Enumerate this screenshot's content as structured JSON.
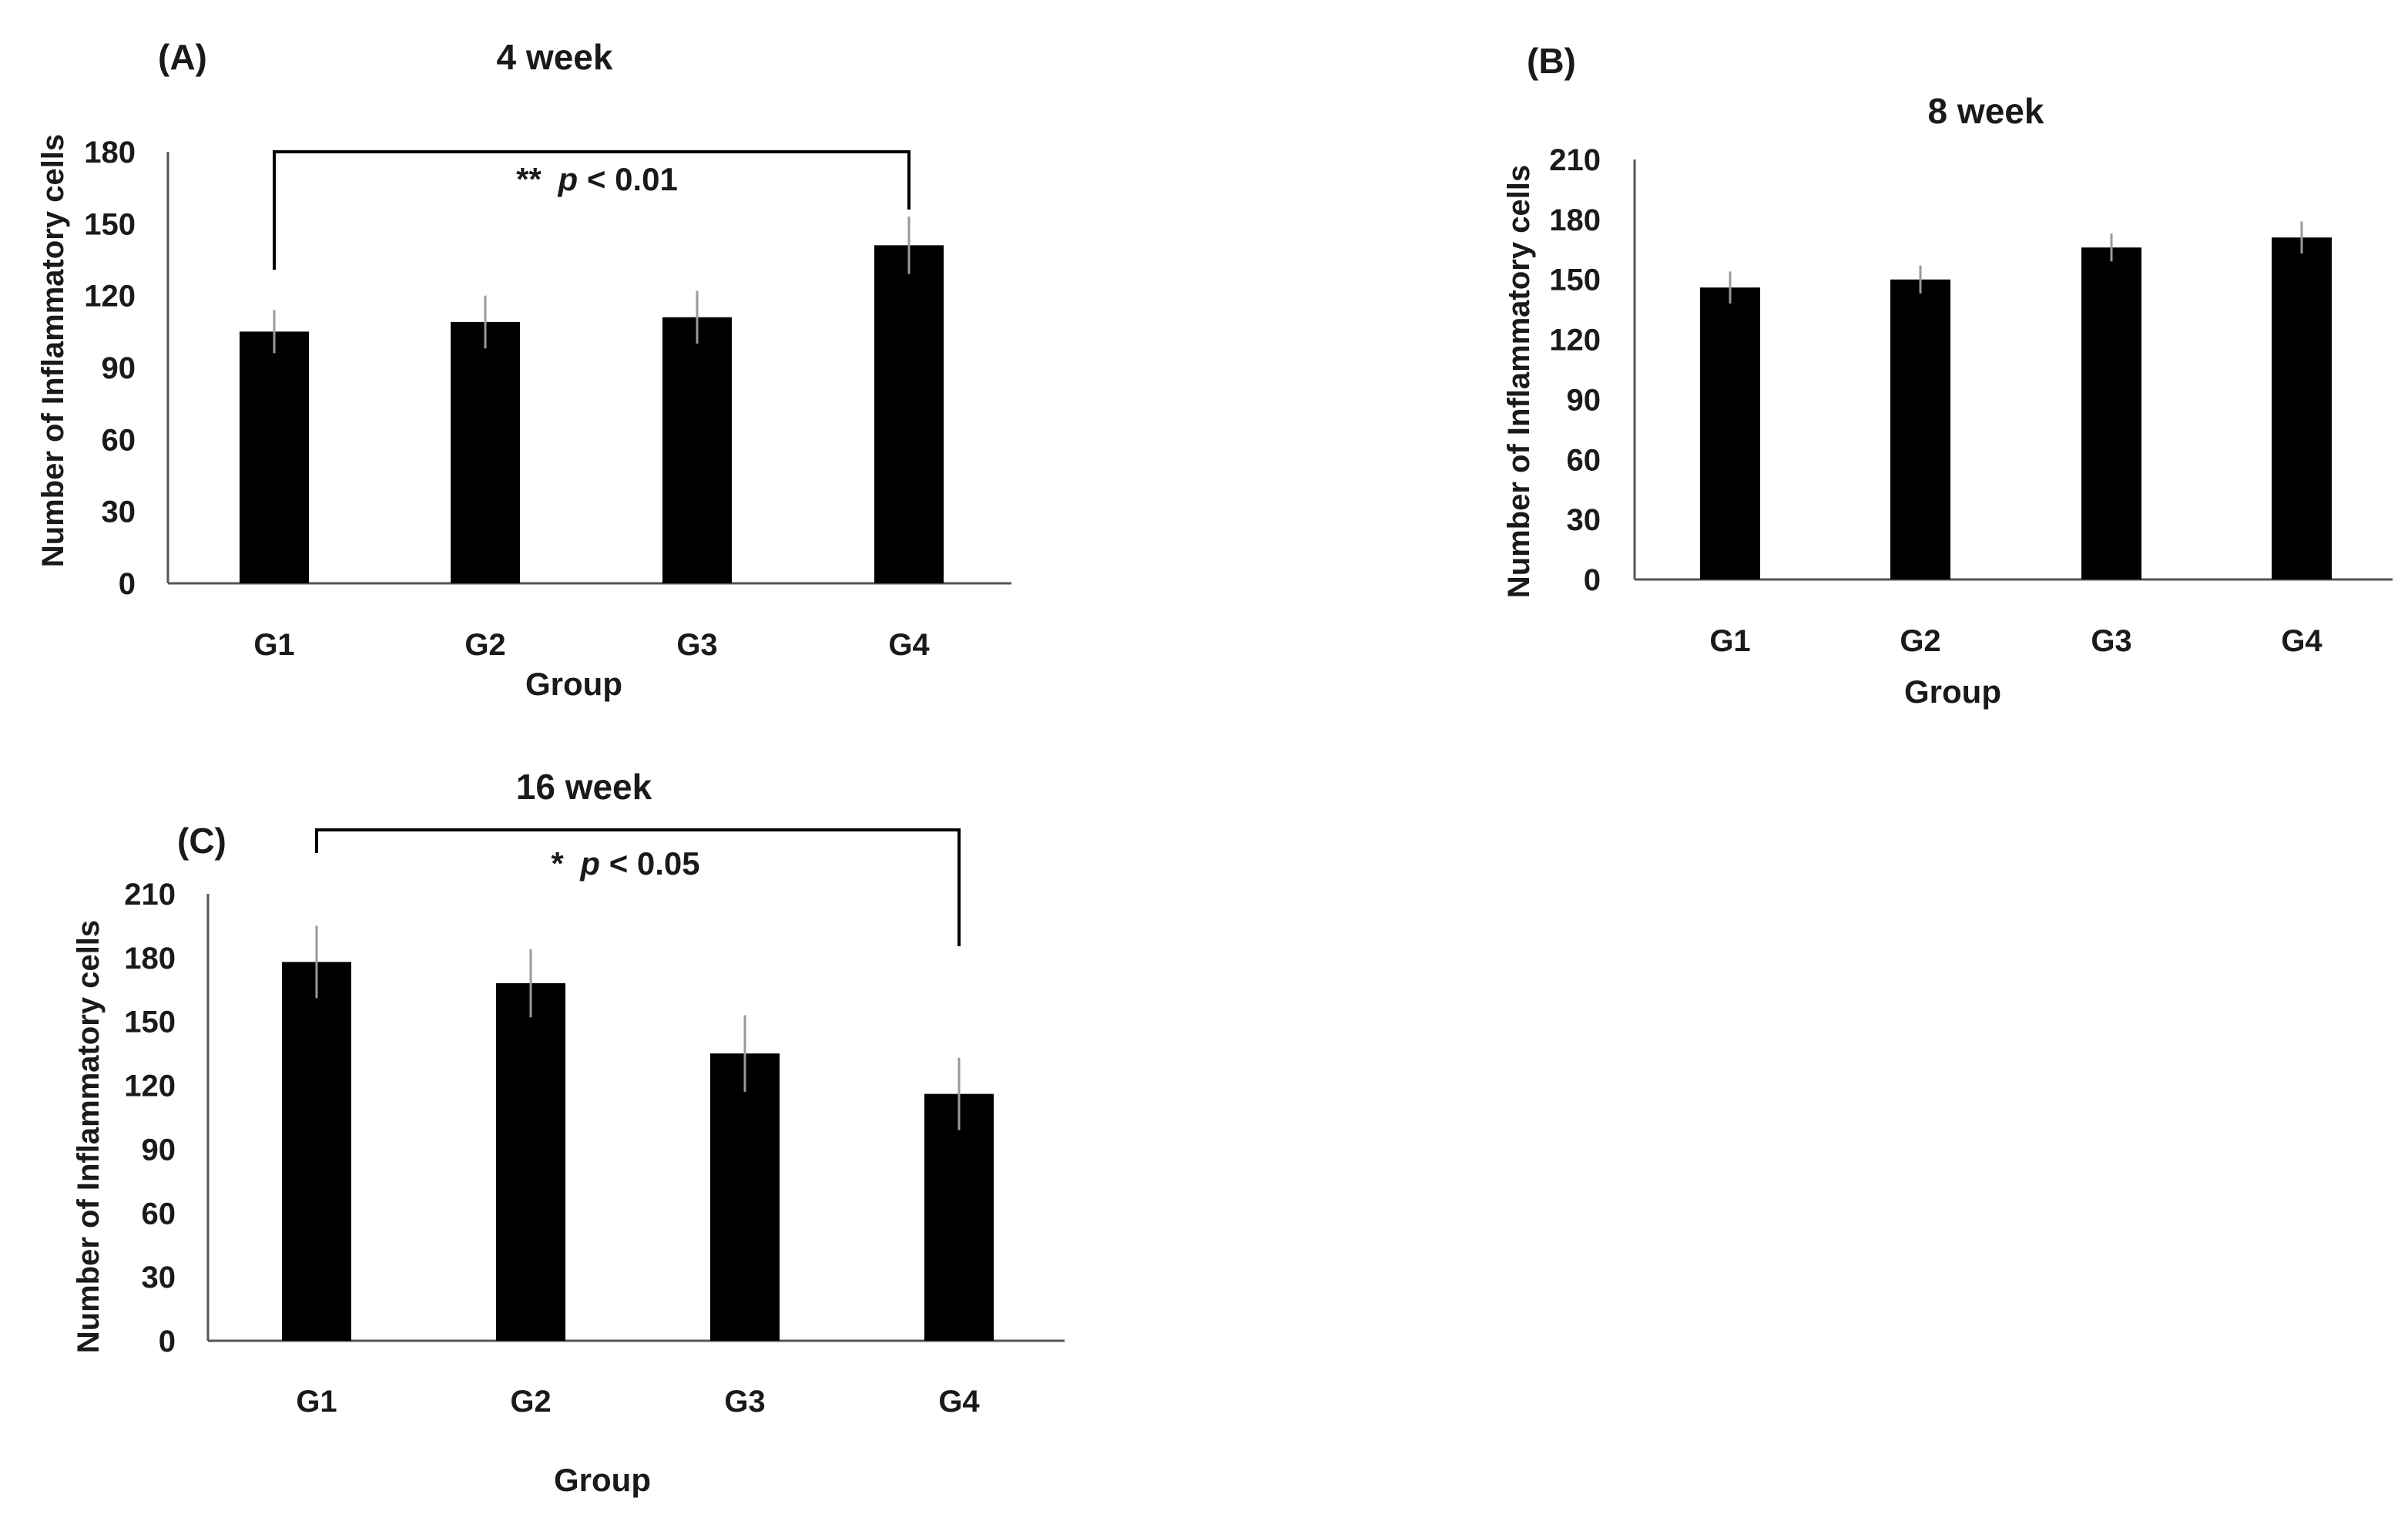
{
  "chart_data": [
    {
      "type": "bar",
      "panel_label": "(A)",
      "title": "4 week",
      "xlabel": "Group",
      "ylabel": "Number of Inflammatory cells",
      "categories": [
        "G1",
        "G2",
        "G3",
        "G4"
      ],
      "values": [
        105,
        109,
        111,
        141
      ],
      "errors": [
        9,
        11,
        11,
        12
      ],
      "ylim": [
        0,
        180
      ],
      "yticks": [
        0,
        30,
        60,
        90,
        120,
        150,
        180
      ],
      "grid": false,
      "significance": {
        "from": "G1",
        "to": "G4",
        "stars": "**",
        "p_symbol": "p",
        "p_text": " < 0.01"
      }
    },
    {
      "type": "bar",
      "panel_label": "(B)",
      "title": "8 week",
      "xlabel": "Group",
      "ylabel": "Number of Inflammatory cells",
      "categories": [
        "G1",
        "G2",
        "G3",
        "G4"
      ],
      "values": [
        146,
        150,
        166,
        171
      ],
      "errors": [
        8,
        7,
        7,
        8
      ],
      "ylim": [
        0,
        210
      ],
      "yticks": [
        0,
        30,
        60,
        90,
        120,
        150,
        180,
        210
      ],
      "grid": false
    },
    {
      "type": "bar",
      "panel_label": "(C)",
      "title": "16 week",
      "xlabel": "Group",
      "ylabel": "Number of Inflammatory cells",
      "categories": [
        "G1",
        "G2",
        "G3",
        "G4"
      ],
      "values": [
        178,
        168,
        135,
        116
      ],
      "errors": [
        17,
        16,
        18,
        17
      ],
      "ylim": [
        0,
        210
      ],
      "yticks": [
        0,
        30,
        60,
        90,
        120,
        150,
        180,
        210
      ],
      "grid": false,
      "significance": {
        "from": "G1",
        "to": "G4",
        "stars": "*",
        "p_symbol": "p",
        "p_text": " < 0.05"
      }
    }
  ]
}
